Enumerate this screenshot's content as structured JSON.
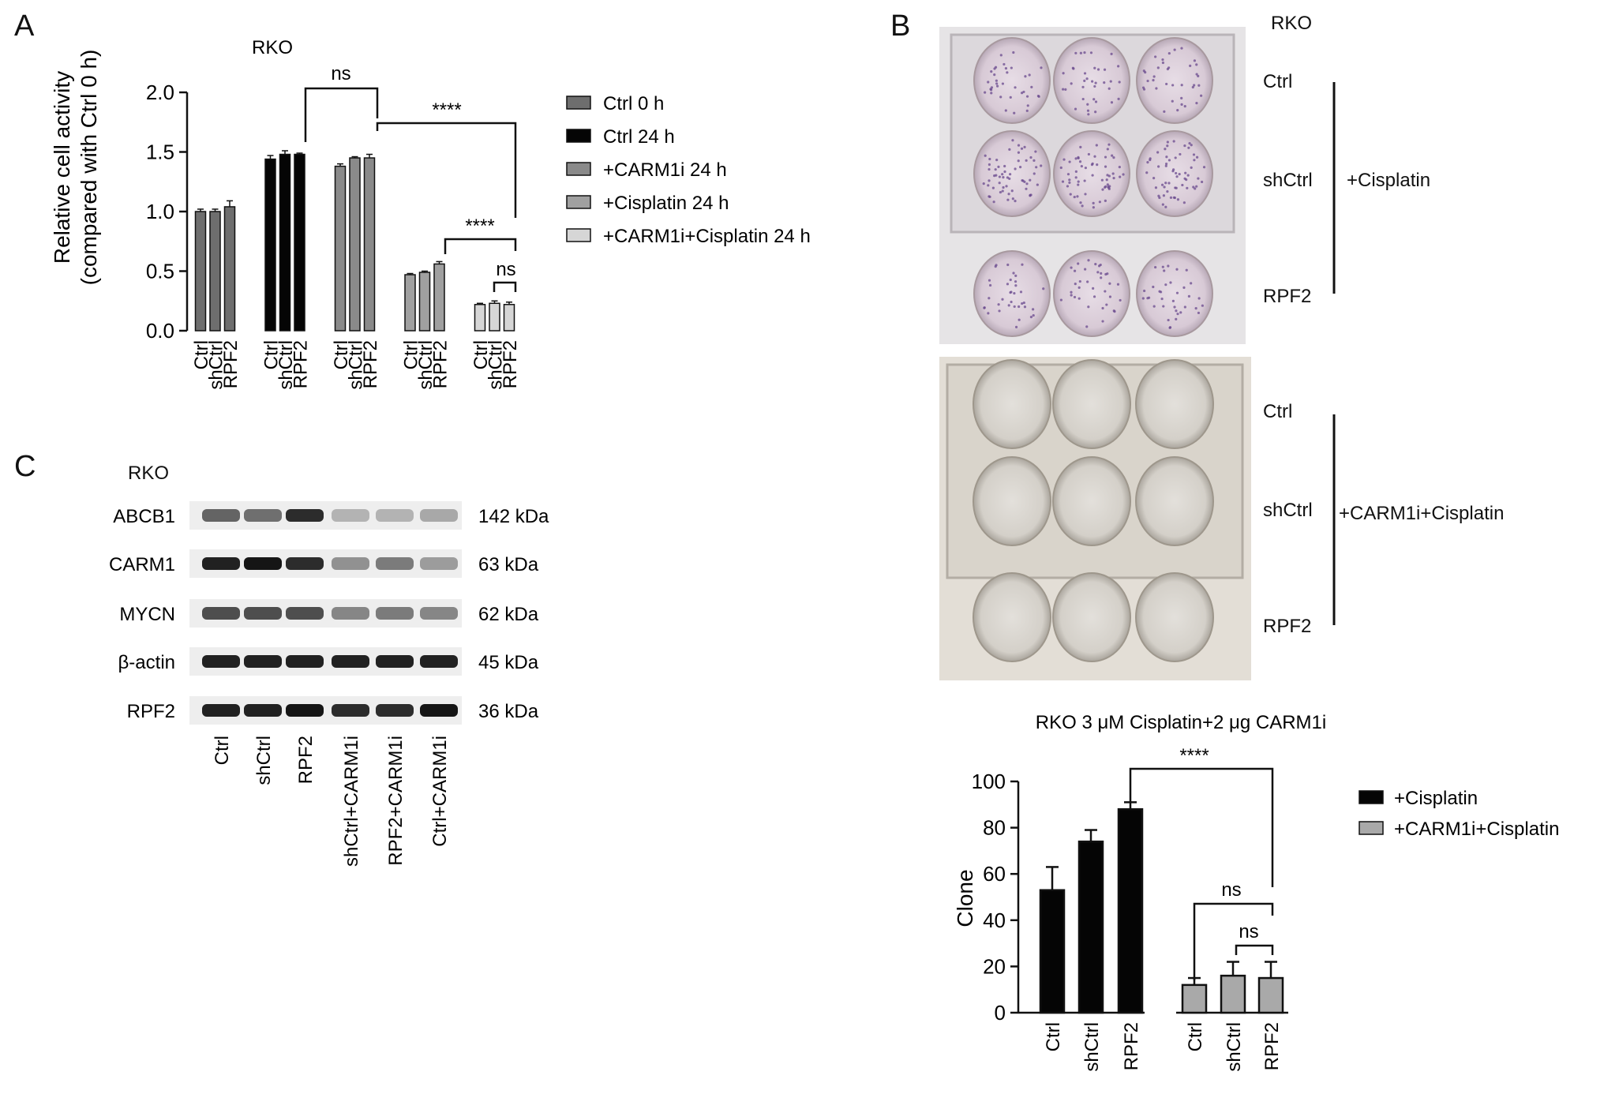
{
  "panels": {
    "a": {
      "letter": "A"
    },
    "b": {
      "letter": "B"
    },
    "c": {
      "letter": "C"
    }
  },
  "colors": {
    "ctrl0": "#6e6e6e",
    "ctrl24": "#050505",
    "carm1i": "#8a8a8a",
    "cisplatin": "#a0a0a0",
    "combo": "#d6d6d6",
    "cisplatin_b": "#050505",
    "combo_b": "#a9a9a9"
  },
  "panel_a_chart": {
    "title": "RKO",
    "ylabel_line1": "Relative cell activity",
    "ylabel_line2": "(compared with Ctrl 0 h)",
    "significance": [
      {
        "label": "ns"
      },
      {
        "label": "****"
      },
      {
        "label": "****"
      },
      {
        "label": "ns"
      }
    ]
  },
  "panel_b_images": {
    "header": "RKO",
    "rows_top": [
      "Ctrl",
      "shCtrl",
      "RPF2"
    ],
    "group_top": "+Cisplatin",
    "rows_bottom": [
      "Ctrl",
      "shCtrl",
      "RPF2"
    ],
    "group_bottom": "+CARM1i+Cisplatin"
  },
  "panel_b_chart": {
    "title": "RKO 3 μM Cisplatin+2 μg CARM1i",
    "significance": [
      {
        "label": "****"
      },
      {
        "label": "ns"
      },
      {
        "label": "ns"
      }
    ]
  },
  "panel_c": {
    "cell_line": "RKO",
    "proteins": [
      {
        "name": "ABCB1",
        "size": "142 kDa"
      },
      {
        "name": "CARM1",
        "size": "63 kDa"
      },
      {
        "name": "MYCN",
        "size": "62 kDa"
      },
      {
        "name": "β-actin",
        "size": "45 kDa"
      },
      {
        "name": "RPF2",
        "size": "36 kDa"
      }
    ],
    "lanes": [
      "Ctrl",
      "shCtrl",
      "RPF2",
      "shCtrl+CARM1i",
      "RPF2+CARM1i",
      "Ctrl+CARM1i"
    ],
    "intensities": [
      [
        0.6,
        0.55,
        0.85,
        0.25,
        0.25,
        0.3
      ],
      [
        0.9,
        0.95,
        0.85,
        0.4,
        0.5,
        0.35
      ],
      [
        0.7,
        0.7,
        0.7,
        0.45,
        0.5,
        0.45
      ],
      [
        0.9,
        0.9,
        0.9,
        0.9,
        0.9,
        0.9
      ],
      [
        0.9,
        0.9,
        0.95,
        0.85,
        0.85,
        0.95
      ]
    ]
  },
  "chart_data": [
    {
      "type": "bar",
      "title": "RKO",
      "xlabel": "",
      "ylabel": "Relative cell activity (compared with Ctrl 0 h)",
      "ylim": [
        0,
        2.0
      ],
      "yticks": [
        "0.0",
        "0.5",
        "1.0",
        "1.5",
        "2.0"
      ],
      "categories": [
        "Ctrl",
        "shCtrl",
        "RPF2"
      ],
      "legend": "right",
      "series": [
        {
          "name": "Ctrl 0 h",
          "values": [
            1.0,
            1.0,
            1.04
          ],
          "errors": [
            0.02,
            0.02,
            0.05
          ]
        },
        {
          "name": "Ctrl 24 h",
          "values": [
            1.44,
            1.48,
            1.48
          ],
          "errors": [
            0.03,
            0.03,
            0.01
          ]
        },
        {
          "name": "+CARM1i 24 h",
          "values": [
            1.38,
            1.45,
            1.45
          ],
          "errors": [
            0.02,
            0.01,
            0.03
          ]
        },
        {
          "name": "+Cisplatin 24 h",
          "values": [
            0.47,
            0.49,
            0.56
          ],
          "errors": [
            0.01,
            0.01,
            0.02
          ]
        },
        {
          "name": "+CARM1i+Cisplatin 24 h",
          "values": [
            0.22,
            0.23,
            0.22
          ],
          "errors": [
            0.01,
            0.02,
            0.02
          ]
        }
      ]
    },
    {
      "type": "bar",
      "title": "RKO 3 μM Cisplatin+2 μg CARM1i",
      "xlabel": "",
      "ylabel": "Clone",
      "ylim": [
        0,
        100
      ],
      "yticks": [
        "0",
        "20",
        "40",
        "60",
        "80",
        "100"
      ],
      "categories": [
        "Ctrl",
        "shCtrl",
        "RPF2"
      ],
      "legend": "right",
      "series": [
        {
          "name": "+Cisplatin",
          "values": [
            53,
            74,
            88
          ],
          "errors": [
            10,
            5,
            3
          ]
        },
        {
          "name": "+CARM1i+Cisplatin",
          "values": [
            12,
            16,
            15
          ],
          "errors": [
            3,
            6,
            7
          ]
        }
      ]
    }
  ]
}
